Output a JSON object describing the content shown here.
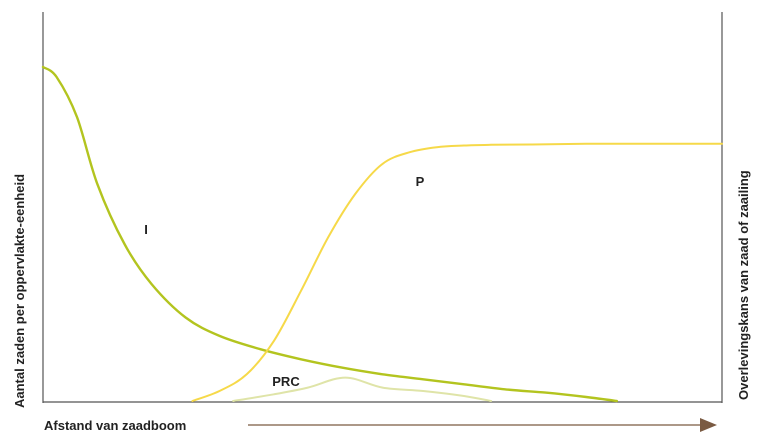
{
  "chart_data": {
    "type": "line",
    "title": "",
    "xlabel": "Afstand van zaadboom",
    "ylabel_left": "Aantal zaden per oppervlakte-eenheid",
    "ylabel_right": "Overlevingskans van zaad of zaailing",
    "x_axis": {
      "ticks": false,
      "range": [
        0,
        100
      ],
      "arrow": true
    },
    "y_axis": {
      "ticks": false,
      "range": [
        0,
        100
      ]
    },
    "grid": false,
    "legend": "none",
    "colors": {
      "axis": "#555555",
      "arrow": "#7a5a42",
      "I": "#b3c41f",
      "P": "#f6d949",
      "PRC": "#dfe4a8"
    },
    "series": [
      {
        "name": "I",
        "label": "I",
        "x": [
          0,
          2,
          5,
          8,
          12,
          16,
          21,
          26,
          32,
          38,
          44,
          50,
          56,
          62,
          68,
          74,
          80,
          84.5
        ],
        "y": [
          100,
          97,
          85,
          65,
          47,
          35,
          25,
          19.5,
          15.5,
          12.5,
          10,
          8,
          6.5,
          5,
          3.5,
          2.5,
          1.2,
          0
        ]
      },
      {
        "name": "P",
        "label": "P",
        "x": [
          22,
          26,
          30,
          34,
          38,
          42,
          46,
          50,
          54,
          58,
          62,
          66,
          72,
          80,
          90,
          100
        ],
        "y": [
          0,
          3,
          8,
          18,
          33,
          49,
          62,
          71,
          74.5,
          76,
          76.5,
          76.7,
          76.8,
          77,
          77,
          77
        ]
      },
      {
        "name": "PRC",
        "label": "PRC",
        "x": [
          28,
          34,
          39,
          44.5,
          50,
          56,
          62,
          66
        ],
        "y": [
          0,
          2,
          4,
          7,
          4,
          3,
          1.5,
          0
        ]
      }
    ]
  }
}
